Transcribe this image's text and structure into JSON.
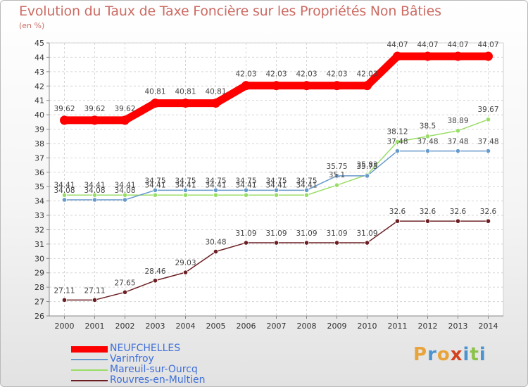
{
  "chart_data": {
    "type": "line",
    "title": "Evolution du Taux de Taxe Foncière sur les Propriétés Non Bâties",
    "ylabel": "(en %)",
    "xlabel": "",
    "ylim": [
      26,
      45
    ],
    "y_ticks": [
      26,
      27,
      28,
      29,
      30,
      31,
      32,
      33,
      34,
      35,
      36,
      37,
      38,
      39,
      40,
      41,
      42,
      43,
      44,
      45
    ],
    "x": [
      "2000",
      "2001",
      "2002",
      "2003",
      "2004",
      "2005",
      "2006",
      "2007",
      "2008",
      "2009",
      "2010",
      "2011",
      "2012",
      "2013",
      "2014"
    ],
    "grid": true,
    "series": [
      {
        "name": "NEUFCHELLES",
        "color": "#ff0000",
        "values": [
          39.62,
          39.62,
          39.62,
          40.81,
          40.81,
          40.81,
          42.03,
          42.03,
          42.03,
          42.03,
          42.03,
          44.07,
          44.07,
          44.07,
          44.07
        ]
      },
      {
        "name": "Varinfroy",
        "color": "#6699cc",
        "values": [
          34.08,
          34.08,
          34.08,
          34.75,
          34.75,
          34.75,
          34.75,
          34.75,
          34.75,
          35.75,
          35.75,
          37.48,
          37.48,
          37.48,
          37.48
        ]
      },
      {
        "name": "Mareuil-sur-Ourcq",
        "color": "#99dd66",
        "values": [
          34.41,
          34.41,
          34.41,
          34.41,
          34.41,
          34.41,
          34.41,
          34.41,
          34.41,
          35.1,
          35.83,
          38.12,
          38.5,
          38.89,
          39.67
        ]
      },
      {
        "name": "Rouvres-en-Multien",
        "color": "#6b1f23",
        "values": [
          27.11,
          27.11,
          27.65,
          28.46,
          29.03,
          30.48,
          31.09,
          31.09,
          31.09,
          31.09,
          31.09,
          32.6,
          32.6,
          32.6,
          32.6
        ]
      }
    ]
  },
  "series_labels": {
    "NEUFCHELLES": [
      "39.62",
      "39.62",
      "39.62",
      "40.81",
      "40.81",
      "40.81",
      "42.03",
      "42.03",
      "42.03",
      "42.03",
      "42.03",
      "44.07",
      "44.07",
      "44.07",
      "44.07"
    ],
    "Varinfroy": [
      "34.08",
      "34.08",
      "34.08",
      "34.75",
      "34.75",
      "34.75",
      "34.75",
      "34.75",
      "34.75",
      "35.75",
      "35.75",
      "37.48",
      "37.48",
      "37.48",
      "37.48"
    ],
    "Mareuil-sur-Ourcq": [
      "34.41",
      "34.41",
      "34.41",
      "34.41",
      "34.41",
      "34.41",
      "34.41",
      "34.41",
      "34.41",
      "35.1",
      "35.83",
      "38.12",
      "38.5",
      "38.89",
      "39.67"
    ],
    "Rouvres-en-Multien": [
      "27.11",
      "27.11",
      "27.65",
      "28.46",
      "29.03",
      "30.48",
      "31.09",
      "31.09",
      "31.09",
      "31.09",
      "31.09",
      "32.6",
      "32.6",
      "32.6",
      "32.6"
    ]
  },
  "legend": {
    "items": [
      "NEUFCHELLES",
      "Varinfroy",
      "Mareuil-sur-Ourcq",
      "Rouvres-en-Multien"
    ]
  },
  "logo": {
    "text": "Proxiti",
    "letter_colors": [
      "#e8a33a",
      "#4d93cf",
      "#e8a33a",
      "#d3421f",
      "#4d93cf",
      "#8bc34a",
      "#4d93cf"
    ]
  }
}
